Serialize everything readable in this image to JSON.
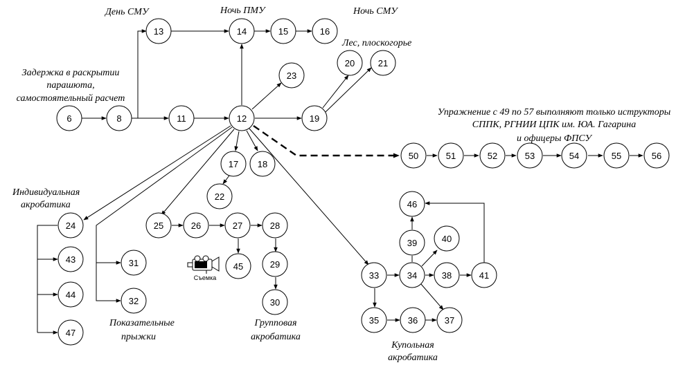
{
  "nodes": [
    "6",
    "8",
    "11",
    "12",
    "13",
    "14",
    "15",
    "16",
    "17",
    "18",
    "19",
    "20",
    "21",
    "22",
    "23",
    "24",
    "25",
    "26",
    "27",
    "28",
    "29",
    "30",
    "31",
    "32",
    "33",
    "34",
    "35",
    "36",
    "37",
    "38",
    "39",
    "40",
    "41",
    "43",
    "44",
    "45",
    "46",
    "47",
    "50",
    "51",
    "52",
    "53",
    "54",
    "55",
    "56"
  ],
  "labels": {
    "day_smu": "День СМУ",
    "night_pmu": "Ночь ПМУ",
    "night_smu": "Ночь СМУ",
    "forest": "Лес, плоскогорье",
    "delay_1": "Задержка в раскрытии",
    "delay_2": "парашюта,",
    "delay_3": "самостоятельный расчет",
    "exercise_1": "Упражнение с 49 по 57 выполняют только иструкторы",
    "exercise_2": "СППК, РГНИИ ЦПК  им. ЮА. Гагарина",
    "exercise_3": "и офицеры ФПСУ",
    "individual_1": "Индивидуальная",
    "individual_2": "акробатика",
    "demo_1": "Показательные",
    "demo_2": "прыжки",
    "group_1": "Групповая",
    "group_2": "акробатика",
    "canopy_1": "Купольная",
    "canopy_2": "акробатика",
    "filming": "Съемка"
  },
  "edges": [
    [
      "6",
      "8"
    ],
    [
      "8",
      "11"
    ],
    [
      "8",
      "13"
    ],
    [
      "11",
      "12"
    ],
    [
      "13",
      "14"
    ],
    [
      "14",
      "15"
    ],
    [
      "15",
      "16"
    ],
    [
      "12",
      "14"
    ],
    [
      "12",
      "23"
    ],
    [
      "12",
      "19"
    ],
    [
      "19",
      "20"
    ],
    [
      "19",
      "21"
    ],
    [
      "12",
      "17"
    ],
    [
      "12",
      "18"
    ],
    [
      "17",
      "22"
    ],
    [
      "12",
      "24"
    ],
    [
      "24",
      "43"
    ],
    [
      "24",
      "44"
    ],
    [
      "24",
      "47"
    ],
    [
      "12",
      "31"
    ],
    [
      "12",
      "32"
    ],
    [
      "12",
      "25"
    ],
    [
      "25",
      "26"
    ],
    [
      "26",
      "27"
    ],
    [
      "27",
      "28"
    ],
    [
      "27",
      "45"
    ],
    [
      "28",
      "29"
    ],
    [
      "29",
      "30"
    ],
    [
      "12",
      "33"
    ],
    [
      "33",
      "34"
    ],
    [
      "33",
      "35"
    ],
    [
      "35",
      "36"
    ],
    [
      "36",
      "37"
    ],
    [
      "34",
      "37"
    ],
    [
      "34",
      "38"
    ],
    [
      "38",
      "41"
    ],
    [
      "41",
      "46"
    ],
    [
      "34",
      "39"
    ],
    [
      "39",
      "46"
    ],
    [
      "34",
      "40"
    ],
    [
      "12",
      "50"
    ],
    [
      "50",
      "51"
    ],
    [
      "51",
      "52"
    ],
    [
      "52",
      "53"
    ],
    [
      "53",
      "54"
    ],
    [
      "54",
      "55"
    ],
    [
      "55",
      "56"
    ]
  ]
}
